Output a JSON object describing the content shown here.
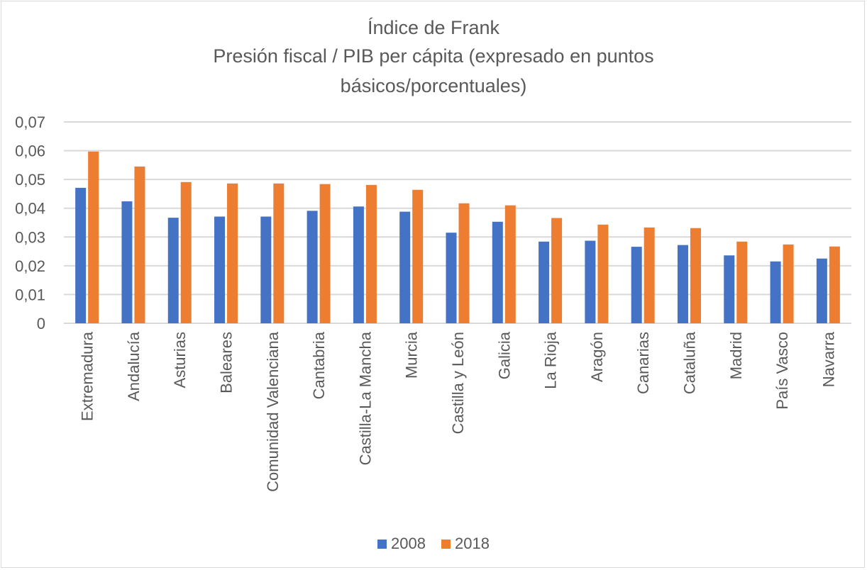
{
  "chart_data": {
    "type": "bar",
    "title_lines": [
      "Índice de Frank",
      "Presión fiscal / PIB per cápita (expresado en puntos",
      "básicos/porcentuales)"
    ],
    "categories": [
      "Extremadura",
      "Andalucía",
      "Asturias",
      "Baleares",
      "Comunidad Valenciana",
      "Cantabria",
      "Castilla-La Mancha",
      "Murcia",
      "Castilla y León",
      "Galicia",
      "La Rioja",
      "Aragón",
      "Canarias",
      "Cataluña",
      "Madrid",
      "País Vasco",
      "Navarra"
    ],
    "series": [
      {
        "name": "2008",
        "color": "#4472c4",
        "values": [
          0.0471,
          0.0424,
          0.0367,
          0.0371,
          0.0371,
          0.0391,
          0.0406,
          0.0388,
          0.0315,
          0.0353,
          0.0284,
          0.0287,
          0.0266,
          0.0272,
          0.0236,
          0.0215,
          0.0225
        ]
      },
      {
        "name": "2018",
        "color": "#ed7d31",
        "values": [
          0.0597,
          0.0545,
          0.0491,
          0.0486,
          0.0486,
          0.0484,
          0.0481,
          0.0464,
          0.0417,
          0.041,
          0.0366,
          0.0343,
          0.0333,
          0.0331,
          0.0284,
          0.0274,
          0.0267
        ]
      }
    ],
    "yticks": [
      "0",
      "0,01",
      "0,02",
      "0,03",
      "0,04",
      "0,05",
      "0,06",
      "0,07"
    ],
    "ylim": [
      0,
      0.07
    ],
    "grid": true,
    "legend": "bottom",
    "xlabel": "",
    "ylabel": ""
  }
}
